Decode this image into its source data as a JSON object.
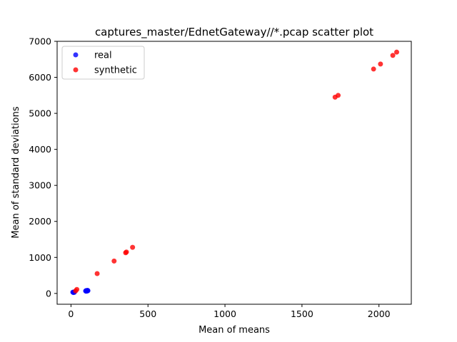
{
  "chart_data": {
    "type": "scatter",
    "title": "captures_master/EdnetGateway//*.pcap scatter plot",
    "xlabel": "Mean of means",
    "ylabel": "Mean of standard deviations",
    "xlim": [
      -90,
      2210
    ],
    "ylim": [
      -300,
      7000
    ],
    "xticks": [
      0,
      500,
      1000,
      1500,
      2000
    ],
    "yticks": [
      0,
      1000,
      2000,
      3000,
      4000,
      5000,
      6000,
      7000
    ],
    "grid": false,
    "legend_position": "top-left",
    "series": [
      {
        "name": "real",
        "color": "#0000ff",
        "points": [
          {
            "x": 12,
            "y": 35
          },
          {
            "x": 18,
            "y": 40
          },
          {
            "x": 22,
            "y": 30
          },
          {
            "x": 15,
            "y": 25
          },
          {
            "x": 95,
            "y": 70
          },
          {
            "x": 100,
            "y": 80
          },
          {
            "x": 105,
            "y": 65
          },
          {
            "x": 110,
            "y": 75
          },
          {
            "x": 98,
            "y": 60
          },
          {
            "x": 108,
            "y": 85
          }
        ]
      },
      {
        "name": "synthetic",
        "color": "#ff0000",
        "points": [
          {
            "x": 30,
            "y": 70
          },
          {
            "x": 38,
            "y": 110
          },
          {
            "x": 170,
            "y": 550
          },
          {
            "x": 280,
            "y": 900
          },
          {
            "x": 355,
            "y": 1130
          },
          {
            "x": 360,
            "y": 1150
          },
          {
            "x": 400,
            "y": 1280
          },
          {
            "x": 1715,
            "y": 5450
          },
          {
            "x": 1735,
            "y": 5500
          },
          {
            "x": 1965,
            "y": 6230
          },
          {
            "x": 2010,
            "y": 6370
          },
          {
            "x": 2090,
            "y": 6610
          },
          {
            "x": 2115,
            "y": 6700
          }
        ]
      }
    ]
  }
}
